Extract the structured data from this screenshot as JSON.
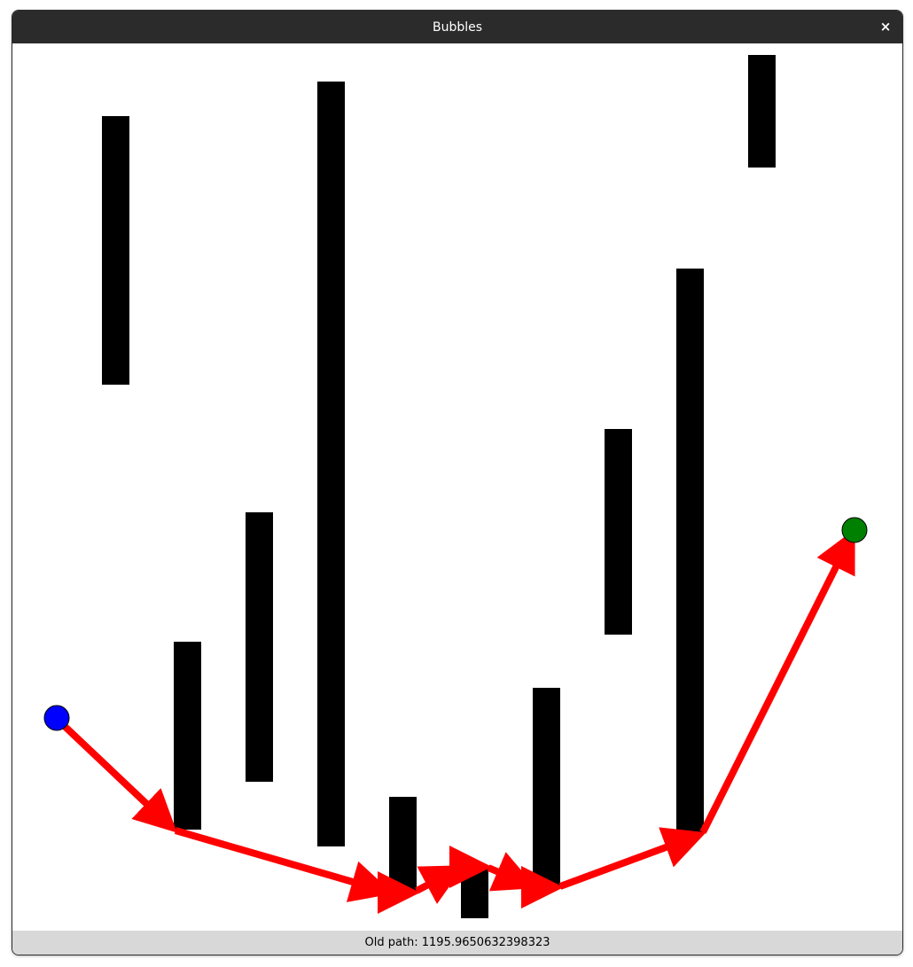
{
  "window": {
    "title": "Bubbles",
    "close_icon": "close-icon",
    "close_glyph": "×"
  },
  "status": {
    "text": "Old path: 1195.9650632398323"
  },
  "colors": {
    "wall": "#000000",
    "path": "#ff0000",
    "start_node": "#0000ff",
    "goal_node": "#008000",
    "background": "#ffffff"
  }
}
